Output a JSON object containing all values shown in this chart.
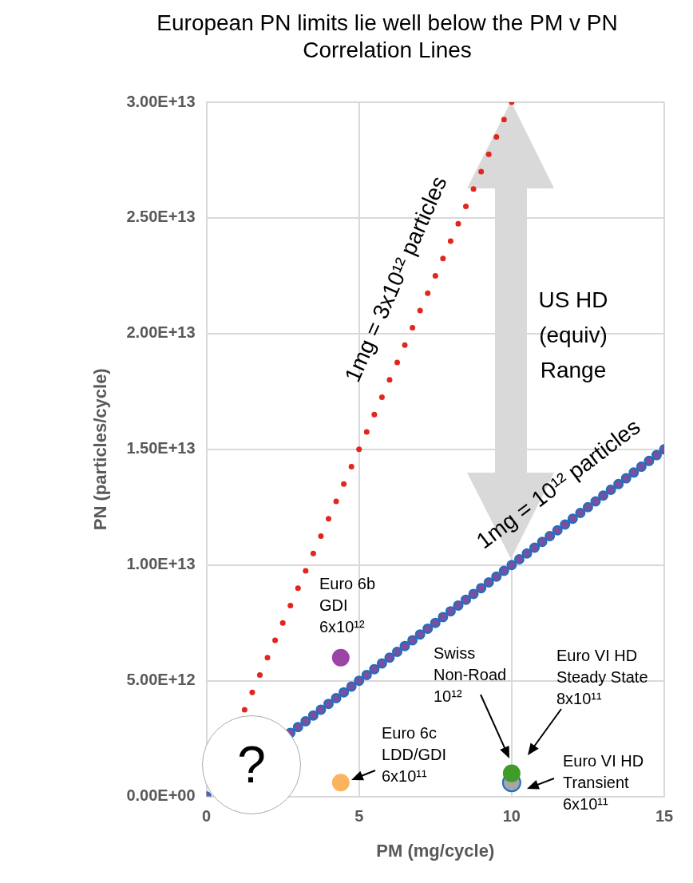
{
  "chart_data": {
    "type": "scatter",
    "title": "European PN limits lie well below the PM v PN Correlation Lines",
    "xlabel": "PM (mg/cycle)",
    "ylabel": "PN (particles/cycle)",
    "xlim": [
      0,
      15
    ],
    "xticks": [
      0,
      5,
      10,
      15
    ],
    "ylim": [
      0,
      30000000000000.0
    ],
    "yticks": [
      {
        "value": 0,
        "label": "0.00E+00"
      },
      {
        "value": 5000000000000.0,
        "label": "5.00E+12"
      },
      {
        "value": 10000000000000.0,
        "label": "1.00E+13"
      },
      {
        "value": 15000000000000.0,
        "label": "1.50E+13"
      },
      {
        "value": 20000000000000.0,
        "label": "2.00E+13"
      },
      {
        "value": 25000000000000.0,
        "label": "2.50E+13"
      },
      {
        "value": 30000000000000.0,
        "label": "3.00E+13"
      }
    ],
    "grid": true,
    "legend": false,
    "marker": "circle",
    "series": [
      {
        "name": "1mg = 3x10¹² particles",
        "color": "#e0261e",
        "x": [
          1.25,
          1.5,
          1.75,
          2,
          2.25,
          2.5,
          2.75,
          3,
          3.25,
          3.5,
          3.75,
          4,
          4.25,
          4.5,
          4.75,
          5,
          5.25,
          5.5,
          5.75,
          6,
          6.25,
          6.5,
          6.75,
          7,
          7.25,
          7.5,
          7.75,
          8,
          8.25,
          8.5,
          8.75,
          9,
          9.25,
          9.5,
          9.75,
          10
        ],
        "values": [
          3750000000000.0,
          4500000000000.0,
          5250000000000.0,
          6000000000000.0,
          6750000000000.0,
          7500000000000.0,
          8250000000000.0,
          9000000000000.0,
          9750000000000.0,
          10500000000000.0,
          11250000000000.0,
          12000000000000.0,
          12750000000000.0,
          13500000000000.0,
          14250000000000.0,
          15000000000000.0,
          15750000000000.0,
          16500000000000.0,
          17250000000000.0,
          18000000000000.0,
          18750000000000.0,
          19500000000000.0,
          20250000000000.0,
          21000000000000.0,
          21750000000000.0,
          22500000000000.0,
          23250000000000.0,
          24000000000000.0,
          24750000000000.0,
          25500000000000.0,
          26250000000000.0,
          27000000000000.0,
          27750000000000.0,
          28500000000000.0,
          29250000000000.0,
          30000000000000.0
        ]
      },
      {
        "name": "1mg = 10¹² particles",
        "color": "#1f6fbf",
        "x": [
          0,
          2.75,
          3,
          3.25,
          3.5,
          3.75,
          4,
          4.25,
          4.5,
          4.75,
          5,
          5.25,
          5.5,
          5.75,
          6,
          6.25,
          6.5,
          6.75,
          7,
          7.25,
          7.5,
          7.75,
          8,
          8.25,
          8.5,
          8.75,
          9,
          9.25,
          9.5,
          9.75,
          10,
          10.25,
          10.5,
          10.75,
          11,
          11.25,
          11.5,
          11.75,
          12,
          12.25,
          12.5,
          12.75,
          13,
          13.25,
          13.5,
          13.75,
          14,
          14.25,
          14.5,
          14.75,
          15
        ],
        "values": [
          0,
          2750000000000.0,
          3000000000000.0,
          3250000000000.0,
          3500000000000.0,
          3750000000000.0,
          4000000000000.0,
          4250000000000.0,
          4500000000000.0,
          4750000000000.0,
          5000000000000.0,
          5250000000000.0,
          5500000000000.0,
          5750000000000.0,
          6000000000000.0,
          6250000000000.0,
          6500000000000.0,
          6750000000000.0,
          7000000000000.0,
          7250000000000.0,
          7500000000000.0,
          7750000000000.0,
          8000000000000.0,
          8250000000000.0,
          8500000000000.0,
          8750000000000.0,
          9000000000000.0,
          9250000000000.0,
          9500000000000.0,
          9750000000000.0,
          10000000000000.0,
          10250000000000.0,
          10500000000000.0,
          10750000000000.0,
          11000000000000.0,
          11250000000000.0,
          11500000000000.0,
          11750000000000.0,
          12000000000000.0,
          12250000000000.0,
          12500000000000.0,
          12750000000000.0,
          13000000000000.0,
          13250000000000.0,
          13500000000000.0,
          13750000000000.0,
          14000000000000.0,
          14250000000000.0,
          14500000000000.0,
          14750000000000.0,
          15000000000000.0
        ]
      },
      {
        "x": [
          4.4,
          4.4,
          10,
          10
        ],
        "values": [
          6000000000000.0,
          600000000000.0,
          600000000000.0,
          1000000000000.0
        ],
        "colors": [
          "#9a45a5",
          "#fbb35e",
          "#a6a6a6",
          "#3f9c2a"
        ]
      }
    ],
    "annotations": [
      "Euro 6b\nGDI\n6x10¹²",
      "Euro 6c\nLDD/GDI\n6x10¹¹",
      "Swiss\nNon-Road\n10¹²",
      "Euro VI HD\nSteady State\n8x10¹¹",
      "Euro VI HD\nTransient\n6x10¹¹",
      "US HD\n(equiv)\nRange",
      "?"
    ]
  }
}
